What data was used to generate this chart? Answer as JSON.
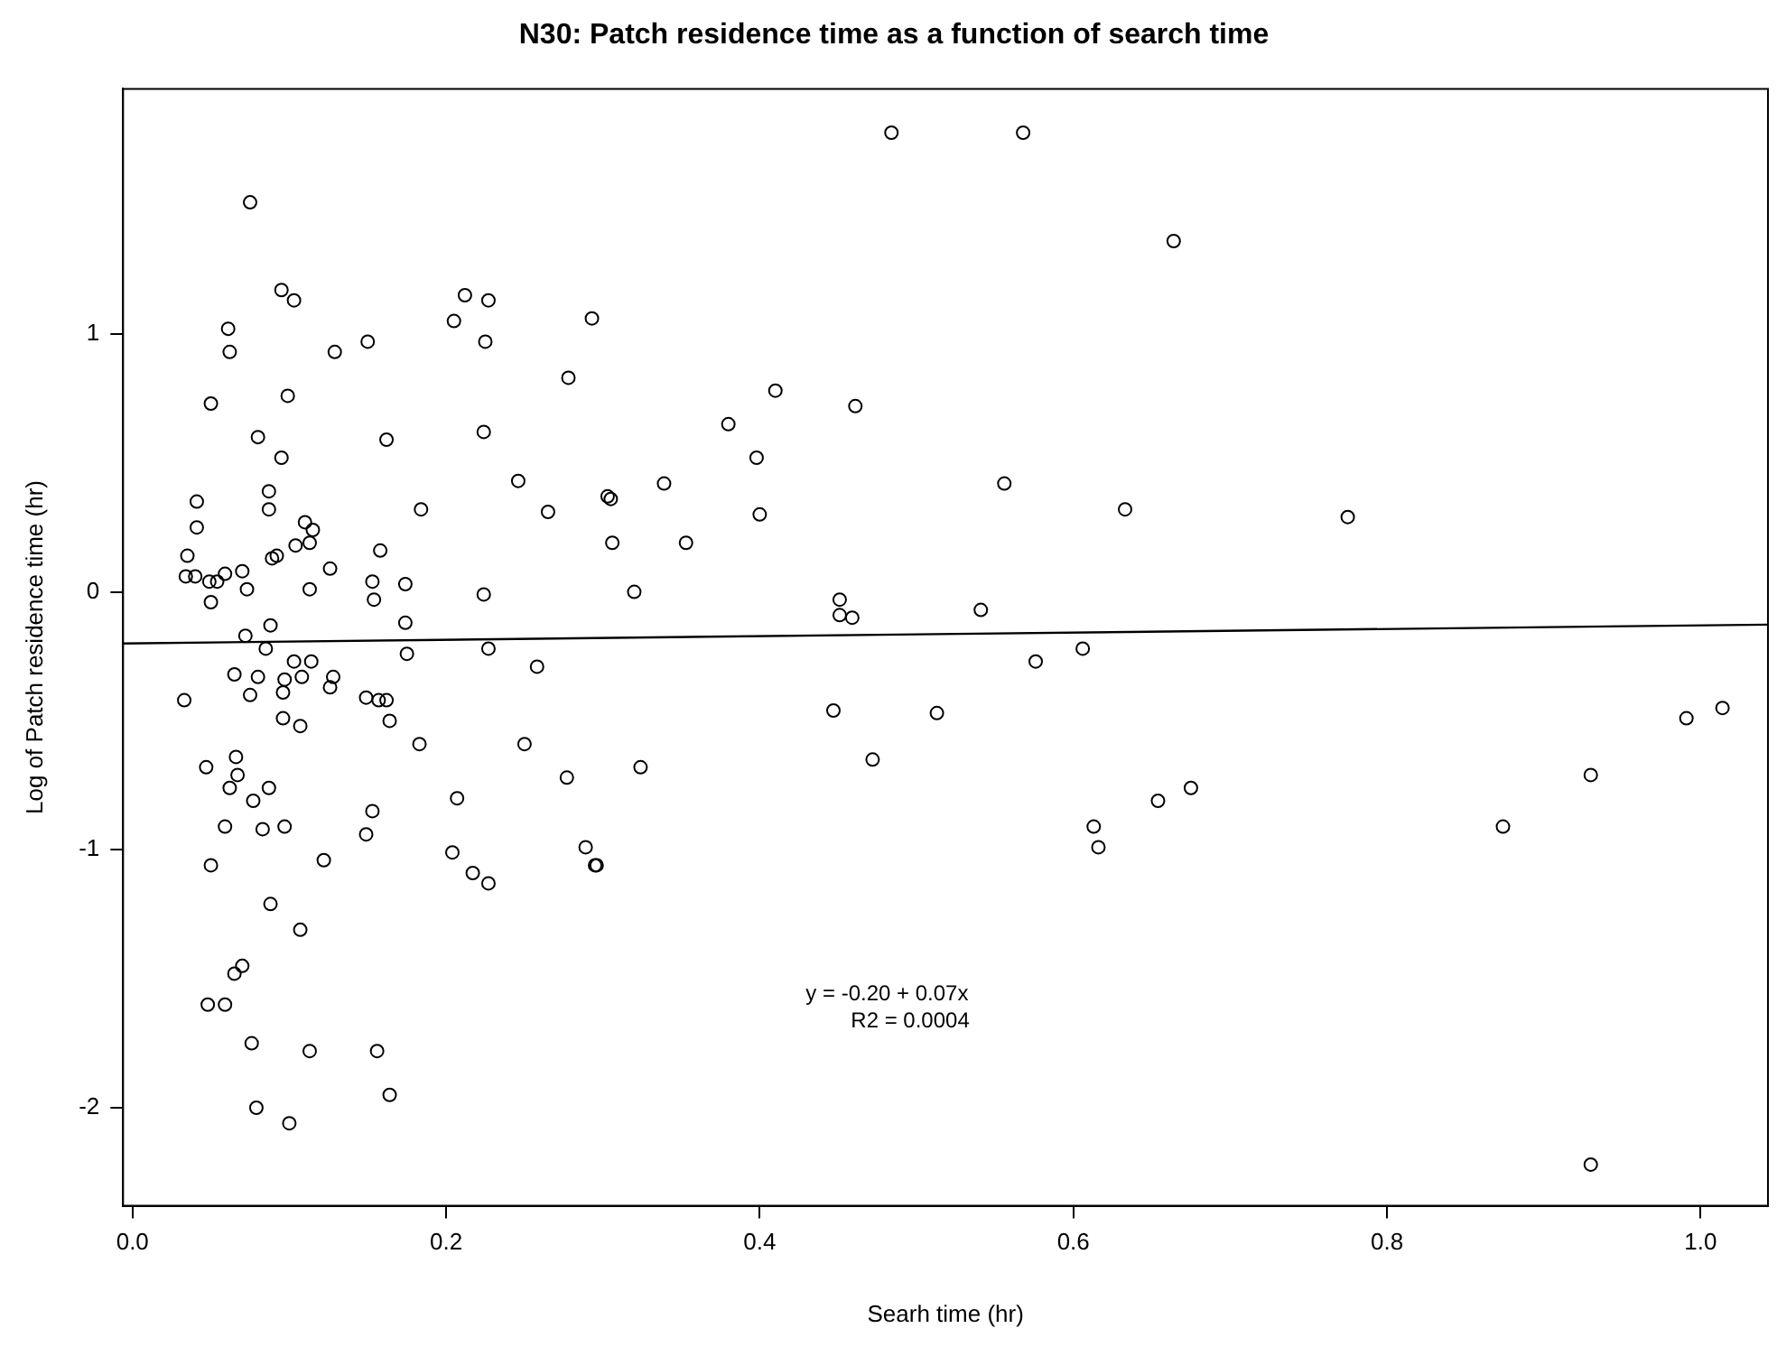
{
  "chart_data": {
    "type": "scatter",
    "title": "N30: Patch residence time as a function of search time",
    "xlabel": "Searh time (hr)",
    "ylabel": "Log of Patch residence time (hr)",
    "xlim": [
      -0.006,
      1.043
    ],
    "ylim": [
      -2.38,
      1.95
    ],
    "xticks": [
      {
        "value": 0,
        "label": "0.0"
      },
      {
        "value": 0.2,
        "label": "0.2"
      },
      {
        "value": 0.4,
        "label": "0.4"
      },
      {
        "value": 0.6,
        "label": "0.6"
      },
      {
        "value": 0.8,
        "label": "0.8"
      },
      {
        "value": 1,
        "label": "1.0"
      }
    ],
    "yticks": [
      -2,
      -1,
      0,
      1
    ],
    "grid": false,
    "legend": false,
    "marker": "circle",
    "annotations": [
      "y = -0.20 + 0.07x",
      "R2 = 0.0004"
    ],
    "series": [
      {
        "color": "#000000",
        "x": [
          0.075,
          0.095,
          0.103,
          0.061,
          0.062,
          0.129,
          0.15,
          0.05,
          0.099,
          0.08,
          0.095,
          0.162,
          0.212,
          0.227,
          0.205,
          0.225,
          0.224,
          0.246,
          0.041,
          0.041,
          0.087,
          0.087,
          0.184,
          0.035,
          0.11,
          0.115,
          0.113,
          0.104,
          0.158,
          0.089,
          0.092,
          0.034,
          0.04,
          0.049,
          0.054,
          0.059,
          0.07,
          0.073,
          0.126,
          0.113,
          0.153,
          0.154,
          0.174,
          0.224,
          0.05,
          0.088,
          0.174,
          0.072,
          0.085,
          0.175,
          0.227,
          0.065,
          0.08,
          0.097,
          0.108,
          0.114,
          0.103,
          0.128,
          0.033,
          0.075,
          0.096,
          0.126,
          0.149,
          0.157,
          0.162,
          0.096,
          0.107,
          0.164,
          0.183,
          0.25,
          0.047,
          0.066,
          0.067,
          0.062,
          0.087,
          0.077,
          0.207,
          0.153,
          0.149,
          0.059,
          0.083,
          0.097,
          0.122,
          0.204,
          0.217,
          0.227,
          0.05,
          0.088,
          0.107,
          0.07,
          0.065,
          0.048,
          0.059,
          0.076,
          0.113,
          0.156,
          0.164,
          0.079,
          0.1,
          0.484,
          0.568,
          0.293,
          0.278,
          0.41,
          0.461,
          0.38,
          0.398,
          0.265,
          0.303,
          0.305,
          0.339,
          0.556,
          0.4,
          0.306,
          0.353,
          0.32,
          0.451,
          0.451,
          0.459,
          0.541,
          0.258,
          0.576,
          0.277,
          0.324,
          0.447,
          0.513,
          0.472,
          0.289,
          0.295,
          0.296,
          0.664,
          0.633,
          0.775,
          0.606,
          0.613,
          0.616,
          0.654,
          0.675,
          0.874,
          0.93,
          0.991,
          1.014,
          0.93
        ],
        "values": [
          1.51,
          1.17,
          1.13,
          1.02,
          0.93,
          0.93,
          0.97,
          0.73,
          0.76,
          0.6,
          0.52,
          0.59,
          1.15,
          1.13,
          1.05,
          0.97,
          0.62,
          0.43,
          0.35,
          0.25,
          0.39,
          0.32,
          0.32,
          0.14,
          0.27,
          0.24,
          0.19,
          0.18,
          0.16,
          0.13,
          0.14,
          0.06,
          0.06,
          0.04,
          0.04,
          0.07,
          0.08,
          0.01,
          0.09,
          0.01,
          0.04,
          -0.03,
          0.03,
          -0.01,
          -0.04,
          -0.13,
          -0.12,
          -0.17,
          -0.22,
          -0.24,
          -0.22,
          -0.32,
          -0.33,
          -0.34,
          -0.33,
          -0.27,
          -0.27,
          -0.33,
          -0.42,
          -0.4,
          -0.39,
          -0.37,
          -0.41,
          -0.42,
          -0.42,
          -0.49,
          -0.52,
          -0.5,
          -0.59,
          -0.59,
          -0.68,
          -0.64,
          -0.71,
          -0.76,
          -0.76,
          -0.81,
          -0.8,
          -0.85,
          -0.94,
          -0.91,
          -0.92,
          -0.91,
          -1.04,
          -1.01,
          -1.09,
          -1.13,
          -1.06,
          -1.21,
          -1.31,
          -1.45,
          -1.48,
          -1.6,
          -1.6,
          -1.75,
          -1.78,
          -1.78,
          -1.95,
          -2.0,
          -2.06,
          1.78,
          1.78,
          1.06,
          0.83,
          0.78,
          0.72,
          0.65,
          0.52,
          0.31,
          0.37,
          0.36,
          0.42,
          0.42,
          0.3,
          0.19,
          0.19,
          0.0,
          -0.03,
          -0.09,
          -0.1,
          -0.07,
          -0.29,
          -0.27,
          -0.72,
          -0.68,
          -0.46,
          -0.47,
          -0.65,
          -0.99,
          -1.06,
          -1.06,
          1.36,
          0.32,
          0.29,
          -0.22,
          -0.91,
          -0.99,
          -0.81,
          -0.76,
          -0.91,
          -0.71,
          -0.49,
          -0.45,
          -2.22
        ]
      },
      {
        "type": "line",
        "color": "#000000",
        "marker": "none",
        "line_style": "solid",
        "x": [
          -0.006,
          1.043
        ],
        "values": [
          -0.2,
          -0.127
        ]
      }
    ]
  }
}
